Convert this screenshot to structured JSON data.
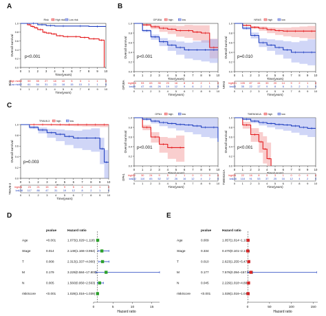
{
  "panels": {
    "A": {
      "letter": "A",
      "legend": {
        "title": "Risk",
        "items": [
          "High risk",
          "Low risk"
        ]
      },
      "ylabel": "Overall survival",
      "xlabel": "Time(years)",
      "pvalue": "p<0.001",
      "xticks": [
        "0",
        "1",
        "2",
        "3",
        "4",
        "5",
        "6",
        "7",
        "8",
        "9",
        "10"
      ],
      "yticks": [
        "0.0",
        "0.2",
        "0.4",
        "0.6",
        "0.8",
        "1.0"
      ],
      "risk_table": {
        "side_label": "Risk",
        "rows": [
          {
            "name": "High risk",
            "color": "#e41a1c",
            "values": [
              "62",
              "59",
              "55",
              "27",
              "18",
              "10",
              "5",
              "3",
              "1",
              "1",
              "0"
            ]
          },
          {
            "name": "Low risk",
            "color": "#1f3fbf",
            "values": [
              "62",
              "61",
              "54",
              "31",
              "23",
              "18",
              "15",
              "10",
              "3",
              "1",
              "0"
            ]
          }
        ]
      }
    },
    "B": {
      "letter": "B",
      "left": {
        "legend": {
          "title": "GP1BA",
          "items": [
            "high",
            "low"
          ]
        },
        "ylabel": "Overall survival",
        "xlabel": "Time(years)",
        "pvalue": "p<0.001",
        "side_label": "GP1BA",
        "rows": [
          {
            "name": "high",
            "color": "#e41a1c",
            "values": [
              "115",
              "93",
              "63",
              "35",
              "23",
              "16",
              "8",
              "6",
              "2",
              "1",
              "0"
            ]
          },
          {
            "name": "low",
            "color": "#1f3fbf",
            "values": [
              "49",
              "47",
              "44",
              "26",
              "19",
              "12",
              "9",
              "6",
              "2",
              "1",
              "0"
            ]
          }
        ]
      },
      "right": {
        "legend": {
          "title": "NRAS",
          "items": [
            "high",
            "low"
          ]
        },
        "ylabel": "Overall survival",
        "xlabel": "Time(years)",
        "pvalue": "p=0.010",
        "side_label": "NRAS",
        "rows": [
          {
            "name": "high",
            "color": "#e41a1c",
            "values": [
              "121",
              "105",
              "87",
              "44",
              "33",
              "20",
              "14",
              "9",
              "2",
              "1",
              "0"
            ]
          },
          {
            "name": "low",
            "color": "#1f3fbf",
            "values": [
              "43",
              "35",
              "22",
              "17",
              "9",
              "8",
              "6",
              "3",
              "2",
              "1",
              "0"
            ]
          }
        ]
      }
    },
    "C": {
      "letter": "C",
      "left": {
        "legend": {
          "title": "TRAV8-3",
          "items": [
            "high",
            "low"
          ]
        },
        "ylabel": "Overall survival",
        "xlabel": "Time(years)",
        "pvalue": "p=0.003",
        "side_label": "TRAV8-3",
        "rows": [
          {
            "name": "high",
            "color": "#e41a1c",
            "values": [
              "26",
              "23",
              "21",
              "15",
              "11",
              "9",
              "5",
              "4",
              "2",
              "1",
              "0"
            ]
          },
          {
            "name": "low",
            "color": "#1f3fbf",
            "values": [
              "138",
              "117",
              "86",
              "47",
              "31",
              "19",
              "12",
              "8",
              "2",
              "1",
              "0"
            ]
          }
        ]
      },
      "mid": {
        "legend": {
          "title": "OPA1",
          "items": [
            "high",
            "low"
          ]
        },
        "ylabel": "Overall survival",
        "xlabel": "Time(years)",
        "pvalue": "p<0.001",
        "side_label": "OPA1",
        "rows": [
          {
            "name": "high",
            "color": "#e41a1c",
            "values": [
              "32",
              "30",
              "24",
              "9",
              "5",
              "2",
              "1",
              "0",
              "0",
              "0",
              "0"
            ]
          },
          {
            "name": "low",
            "color": "#1f3fbf",
            "values": [
              "132",
              "110",
              "83",
              "52",
              "37",
              "26",
              "16",
              "12",
              "4",
              "2",
              "0"
            ]
          }
        ]
      },
      "right": {
        "legend": {
          "title": "TMEM161A",
          "items": [
            "high",
            "low"
          ]
        },
        "ylabel": "Overall survival",
        "xlabel": "Time(years)",
        "pvalue": "p<0.001",
        "side_label": "TMEM161A",
        "rows": [
          {
            "name": "high",
            "color": "#e41a1c",
            "values": [
              "28",
              "22",
              "16",
              "8",
              "5",
              "3",
              "1",
              "0",
              "0",
              "0",
              "0"
            ]
          },
          {
            "name": "low",
            "color": "#1f3fbf",
            "values": [
              "136",
              "118",
              "91",
              "53",
              "37",
              "25",
              "16",
              "12",
              "4",
              "2",
              "0"
            ]
          }
        ]
      }
    },
    "D": {
      "letter": "D",
      "headers": {
        "pvalue": "pvalue",
        "hr": "Hazard ratio"
      },
      "xlabel": "Hazard ratio",
      "xticks": [
        "0",
        "5",
        "10",
        "15"
      ],
      "rows": [
        {
          "label": "Age",
          "pvalue": "<0.001",
          "hr": "1.073(1.029~1.118)"
        },
        {
          "label": "Stage",
          "pvalue": "0.014",
          "hr": "2.149(1.166~3.954)"
        },
        {
          "label": "T",
          "pvalue": "0.008",
          "hr": "2.313(1.337~4.000)"
        },
        {
          "label": "M",
          "pvalue": "0.179",
          "hr": "3.229(0.584~17.800)"
        },
        {
          "label": "N",
          "pvalue": "0.005",
          "hr": "1.560(0.956~2.563)"
        },
        {
          "label": "riskScore",
          "pvalue": "<0.001",
          "hr": "1.028(1.016~1.039)"
        }
      ]
    },
    "E": {
      "letter": "E",
      "headers": {
        "pvalue": "pvalue",
        "hr": "Hazard ratio"
      },
      "xlabel": "Hazard ratio",
      "xticks": [
        "0",
        "50",
        "100",
        "150"
      ],
      "rows": [
        {
          "label": "Age",
          "pvalue": "0.009",
          "hr": "1.057(1.014~1.102)"
        },
        {
          "label": "Stage",
          "pvalue": "0.334",
          "hr": "0.470(0.101~2.176)"
        },
        {
          "label": "T",
          "pvalue": "0.010",
          "hr": "2.623(1.255~5.478)"
        },
        {
          "label": "M",
          "pvalue": "0.177",
          "hr": "7.576(0.394~157.503)"
        },
        {
          "label": "N",
          "pvalue": "0.045",
          "hr": "2.229(1.018~4.881)"
        },
        {
          "label": "riskScore",
          "pvalue": "<0.001",
          "hr": "1.028(1.016~1.040)"
        }
      ]
    }
  },
  "colors": {
    "high": "#e41a1c",
    "low": "#1f3fbf",
    "high_ci": "#f4a6a6",
    "low_ci": "#a9b4f0",
    "point": "#2ca02c"
  },
  "chart_data": [
    {
      "type": "line",
      "panel": "A",
      "xlabel": "Time(years)",
      "ylabel": "Overall survival",
      "xlim": [
        0,
        10
      ],
      "ylim": [
        0,
        1
      ],
      "series": [
        {
          "name": "High risk",
          "x": [
            0,
            0.8,
            1.2,
            1.6,
            2.0,
            2.6,
            3.0,
            3.6,
            4.2,
            5.0,
            6.0,
            7.0,
            8.0,
            9.2,
            9.8
          ],
          "y": [
            1.0,
            0.97,
            0.93,
            0.9,
            0.86,
            0.8,
            0.78,
            0.76,
            0.72,
            0.7,
            0.7,
            0.68,
            0.65,
            0.62,
            0.0
          ]
        },
        {
          "name": "Low risk",
          "x": [
            0,
            1.0,
            2.0,
            3.0,
            4.0,
            6.0,
            8.0,
            10.0
          ],
          "y": [
            1.0,
            1.0,
            0.97,
            0.95,
            0.94,
            0.94,
            0.93,
            0.93
          ]
        }
      ]
    },
    {
      "type": "line",
      "panel": "B-GP1BA",
      "xlabel": "Time(years)",
      "ylabel": "Overall survival",
      "xlim": [
        0,
        10
      ],
      "ylim": [
        0,
        1
      ],
      "series": [
        {
          "name": "high",
          "x": [
            0,
            1,
            2,
            3,
            4,
            5,
            6,
            7,
            8,
            9,
            10
          ],
          "y": [
            1.0,
            0.97,
            0.93,
            0.9,
            0.88,
            0.85,
            0.85,
            0.82,
            0.8,
            0.5,
            0.5
          ]
        },
        {
          "name": "low",
          "x": [
            0,
            1,
            2,
            3,
            4,
            5,
            6,
            7,
            8,
            9,
            10
          ],
          "y": [
            1.0,
            0.85,
            0.72,
            0.62,
            0.55,
            0.5,
            0.45,
            0.45,
            0.45,
            0.45,
            0.45
          ]
        }
      ]
    },
    {
      "type": "line",
      "panel": "B-NRAS",
      "xlabel": "Time(years)",
      "ylabel": "Overall survival",
      "xlim": [
        0,
        10
      ],
      "ylim": [
        0,
        1
      ],
      "series": [
        {
          "name": "high",
          "x": [
            0,
            1,
            2,
            3,
            4,
            5,
            6,
            7,
            8,
            9,
            10
          ],
          "y": [
            1.0,
            0.96,
            0.92,
            0.9,
            0.87,
            0.85,
            0.84,
            0.84,
            0.84,
            0.84,
            0.84
          ]
        },
        {
          "name": "low",
          "x": [
            0,
            1,
            2,
            3,
            4,
            5,
            6,
            7,
            8,
            9,
            10
          ],
          "y": [
            1.0,
            0.9,
            0.75,
            0.6,
            0.55,
            0.5,
            0.45,
            0.4,
            0.4,
            0.4,
            0.4
          ]
        }
      ]
    },
    {
      "type": "line",
      "panel": "C-TRAV8-3",
      "xlabel": "Time(years)",
      "ylabel": "Overall survival",
      "xlim": [
        0,
        10
      ],
      "ylim": [
        0,
        1
      ],
      "series": [
        {
          "name": "high",
          "x": [
            0,
            1,
            2,
            3,
            4,
            5,
            6,
            7,
            8,
            9,
            10
          ],
          "y": [
            1.0,
            1.0,
            1.0,
            1.0,
            1.0,
            1.0,
            1.0,
            1.0,
            1.0,
            1.0,
            1.0
          ]
        },
        {
          "name": "low",
          "x": [
            0,
            1,
            2,
            3,
            4,
            5,
            6,
            7,
            8,
            9,
            9.5,
            10
          ],
          "y": [
            1.0,
            0.95,
            0.9,
            0.85,
            0.82,
            0.78,
            0.75,
            0.75,
            0.75,
            0.55,
            0.3,
            0.3
          ]
        }
      ]
    },
    {
      "type": "line",
      "panel": "C-OPA1",
      "xlabel": "Time(years)",
      "ylabel": "Overall survival",
      "xlim": [
        0,
        10
      ],
      "ylim": [
        0,
        1
      ],
      "series": [
        {
          "name": "high",
          "x": [
            0,
            1,
            2,
            3,
            4,
            5,
            6
          ],
          "y": [
            1.0,
            0.8,
            0.6,
            0.45,
            0.38,
            0.38,
            0.38
          ]
        },
        {
          "name": "low",
          "x": [
            0,
            1,
            2,
            3,
            4,
            5,
            6,
            7,
            8,
            9,
            10
          ],
          "y": [
            1.0,
            0.97,
            0.93,
            0.9,
            0.88,
            0.86,
            0.85,
            0.83,
            0.8,
            0.8,
            0.5
          ]
        }
      ]
    },
    {
      "type": "line",
      "panel": "C-TMEM161A",
      "xlabel": "Time(years)",
      "ylabel": "Overall survival",
      "xlim": [
        0,
        10
      ],
      "ylim": [
        0,
        1
      ],
      "series": [
        {
          "name": "high",
          "x": [
            0,
            1,
            2,
            3,
            3.5,
            4,
            4.5
          ],
          "y": [
            1.0,
            0.85,
            0.65,
            0.5,
            0.35,
            0.15,
            0.0
          ]
        },
        {
          "name": "low",
          "x": [
            0,
            1,
            2,
            3,
            4,
            5,
            6,
            7,
            8,
            9,
            10
          ],
          "y": [
            1.0,
            0.97,
            0.93,
            0.9,
            0.88,
            0.86,
            0.85,
            0.83,
            0.8,
            0.78,
            0.78
          ]
        }
      ]
    },
    {
      "type": "scatter",
      "panel": "D",
      "title": "",
      "xlabel": "Hazard ratio",
      "xlim": [
        0,
        17
      ],
      "categories": [
        "Age",
        "Stage",
        "T",
        "M",
        "N",
        "riskScore"
      ],
      "values": [
        1.073,
        2.149,
        2.313,
        3.229,
        1.56,
        1.028
      ],
      "lower": [
        1.029,
        1.166,
        1.337,
        0.584,
        0.956,
        1.016
      ],
      "upper": [
        1.118,
        3.954,
        4.0,
        17.8,
        2.563,
        1.039
      ]
    },
    {
      "type": "scatter",
      "panel": "E",
      "title": "",
      "xlabel": "Hazard ratio",
      "xlim": [
        0,
        160
      ],
      "categories": [
        "Age",
        "Stage",
        "T",
        "M",
        "N",
        "riskScore"
      ],
      "values": [
        1.057,
        0.47,
        2.623,
        7.576,
        2.229,
        1.028
      ],
      "lower": [
        1.014,
        0.101,
        1.255,
        0.394,
        1.018,
        1.016
      ],
      "upper": [
        1.102,
        2.176,
        5.478,
        157.503,
        4.881,
        1.04
      ]
    }
  ]
}
